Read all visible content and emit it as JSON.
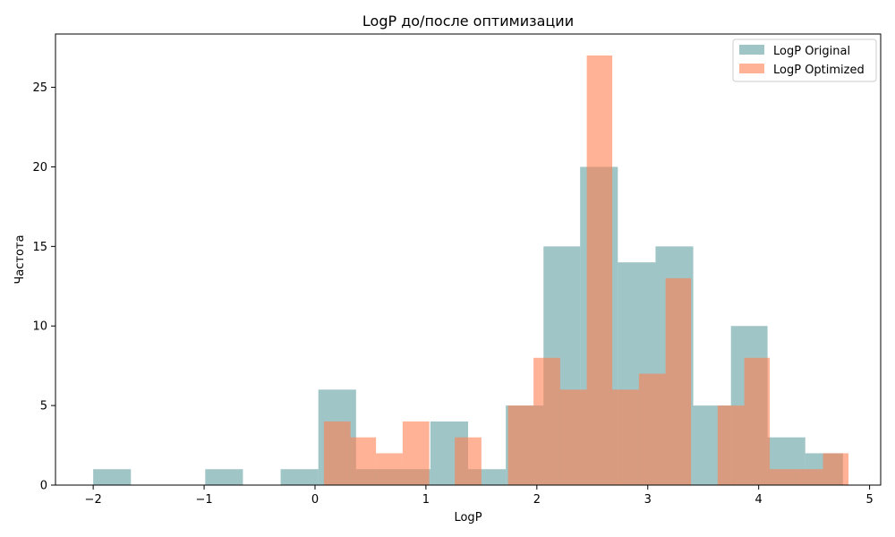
{
  "chart_data": {
    "type": "bar",
    "title": "LogP до/после оптимизации",
    "xlabel": "LogP",
    "ylabel": "Частота",
    "xlim": [
      -2.34,
      5.1
    ],
    "ylim": [
      0,
      28.35
    ],
    "xticks": [
      -2,
      -1,
      0,
      1,
      2,
      3,
      4,
      5
    ],
    "xtick_labels": [
      "−2",
      "−1",
      "0",
      "1",
      "2",
      "3",
      "4",
      "5"
    ],
    "yticks": [
      0,
      5,
      10,
      15,
      20,
      25
    ],
    "ytick_labels": [
      "0",
      "5",
      "10",
      "15",
      "20",
      "25"
    ],
    "grid": false,
    "legend_position": "top-right",
    "series": [
      {
        "name": "LogP Original",
        "color": "#5f9ea0",
        "opacity": 0.6,
        "bins": [
          {
            "x0": -2.0,
            "x1": -1.66,
            "count": 1
          },
          {
            "x0": -1.66,
            "x1": -1.33,
            "count": 0
          },
          {
            "x0": -1.33,
            "x1": -0.99,
            "count": 0
          },
          {
            "x0": -0.99,
            "x1": -0.65,
            "count": 1
          },
          {
            "x0": -0.65,
            "x1": -0.31,
            "count": 0
          },
          {
            "x0": -0.31,
            "x1": 0.03,
            "count": 1
          },
          {
            "x0": 0.03,
            "x1": 0.37,
            "count": 6
          },
          {
            "x0": 0.37,
            "x1": 0.7,
            "count": 1
          },
          {
            "x0": 0.7,
            "x1": 1.04,
            "count": 1
          },
          {
            "x0": 1.04,
            "x1": 1.38,
            "count": 4
          },
          {
            "x0": 1.38,
            "x1": 1.72,
            "count": 1
          },
          {
            "x0": 1.72,
            "x1": 2.06,
            "count": 5
          },
          {
            "x0": 2.06,
            "x1": 2.39,
            "count": 15
          },
          {
            "x0": 2.39,
            "x1": 2.73,
            "count": 20
          },
          {
            "x0": 2.73,
            "x1": 3.07,
            "count": 14
          },
          {
            "x0": 3.07,
            "x1": 3.41,
            "count": 15
          },
          {
            "x0": 3.41,
            "x1": 3.75,
            "count": 5
          },
          {
            "x0": 3.75,
            "x1": 4.08,
            "count": 10
          },
          {
            "x0": 4.08,
            "x1": 4.42,
            "count": 3
          },
          {
            "x0": 4.42,
            "x1": 4.76,
            "count": 2
          }
        ]
      },
      {
        "name": "LogP Optimized",
        "color": "#ff7f50",
        "opacity": 0.6,
        "bins": [
          {
            "x0": 0.08,
            "x1": 0.32,
            "count": 4
          },
          {
            "x0": 0.32,
            "x1": 0.55,
            "count": 3
          },
          {
            "x0": 0.55,
            "x1": 0.79,
            "count": 2
          },
          {
            "x0": 0.79,
            "x1": 1.03,
            "count": 4
          },
          {
            "x0": 1.03,
            "x1": 1.26,
            "count": 0
          },
          {
            "x0": 1.26,
            "x1": 1.5,
            "count": 3
          },
          {
            "x0": 1.5,
            "x1": 1.74,
            "count": 0
          },
          {
            "x0": 1.74,
            "x1": 1.97,
            "count": 5
          },
          {
            "x0": 1.97,
            "x1": 2.21,
            "count": 8
          },
          {
            "x0": 2.21,
            "x1": 2.45,
            "count": 6
          },
          {
            "x0": 2.45,
            "x1": 2.68,
            "count": 27
          },
          {
            "x0": 2.68,
            "x1": 2.92,
            "count": 6
          },
          {
            "x0": 2.92,
            "x1": 3.16,
            "count": 7
          },
          {
            "x0": 3.16,
            "x1": 3.39,
            "count": 13
          },
          {
            "x0": 3.39,
            "x1": 3.63,
            "count": 0
          },
          {
            "x0": 3.63,
            "x1": 3.87,
            "count": 5
          },
          {
            "x0": 3.87,
            "x1": 4.1,
            "count": 8
          },
          {
            "x0": 4.1,
            "x1": 4.34,
            "count": 1
          },
          {
            "x0": 4.34,
            "x1": 4.58,
            "count": 1
          },
          {
            "x0": 4.58,
            "x1": 4.81,
            "count": 2
          }
        ]
      }
    ]
  }
}
